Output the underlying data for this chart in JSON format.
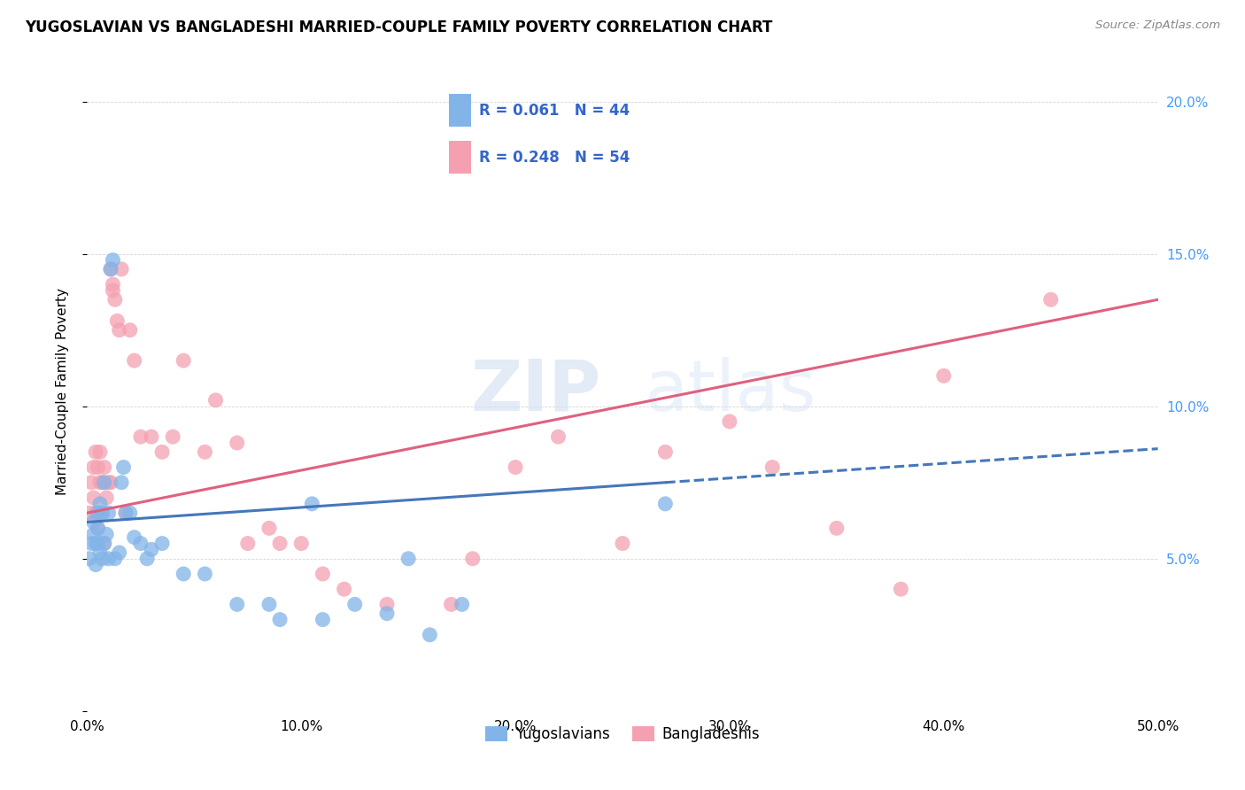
{
  "title": "YUGOSLAVIAN VS BANGLADESHI MARRIED-COUPLE FAMILY POVERTY CORRELATION CHART",
  "source": "Source: ZipAtlas.com",
  "ylabel": "Married-Couple Family Poverty",
  "xlabel_ticks": [
    "0.0%",
    "10.0%",
    "20.0%",
    "30.0%",
    "40.0%",
    "50.0%"
  ],
  "xlabel_vals": [
    0,
    10,
    20,
    30,
    40,
    50
  ],
  "ylabel_vals": [
    0,
    5,
    10,
    15,
    20
  ],
  "right_ylabel_ticks": [
    "",
    "5.0%",
    "10.0%",
    "15.0%",
    "20.0%"
  ],
  "xlim": [
    0,
    50
  ],
  "ylim": [
    0,
    21
  ],
  "legend1_label": "Yugoslavians",
  "legend2_label": "Bangladeshis",
  "R_yugo": "0.061",
  "N_yugo": "44",
  "R_bang": "0.248",
  "N_bang": "54",
  "color_yugo": "#82b4e8",
  "color_bang": "#f4a0b0",
  "color_yugo_line": "#4477bb",
  "color_bang_line": "#e06080",
  "color_right_axis": "#4499ff",
  "watermark_zip": "ZIP",
  "watermark_atlas": "atlas",
  "yugo_x": [
    0.1,
    0.2,
    0.3,
    0.3,
    0.4,
    0.4,
    0.5,
    0.5,
    0.5,
    0.6,
    0.6,
    0.7,
    0.7,
    0.8,
    0.8,
    0.9,
    1.0,
    1.0,
    1.1,
    1.2,
    1.3,
    1.5,
    1.6,
    1.7,
    1.8,
    2.0,
    2.2,
    2.5,
    2.8,
    3.0,
    3.5,
    4.5,
    5.5,
    7.0,
    8.5,
    9.0,
    10.5,
    11.0,
    12.5,
    14.0,
    15.0,
    16.0,
    17.5,
    27.0
  ],
  "yugo_y": [
    5.0,
    5.5,
    5.8,
    6.2,
    4.8,
    5.5,
    5.5,
    6.0,
    6.5,
    5.2,
    6.8,
    5.0,
    6.5,
    5.5,
    7.5,
    5.8,
    6.5,
    5.0,
    14.5,
    14.8,
    5.0,
    5.2,
    7.5,
    8.0,
    6.5,
    6.5,
    5.7,
    5.5,
    5.0,
    5.3,
    5.5,
    4.5,
    4.5,
    3.5,
    3.5,
    3.0,
    6.8,
    3.0,
    3.5,
    3.2,
    5.0,
    2.5,
    3.5,
    6.8
  ],
  "bang_x": [
    0.1,
    0.2,
    0.3,
    0.3,
    0.4,
    0.4,
    0.5,
    0.5,
    0.6,
    0.6,
    0.7,
    0.7,
    0.8,
    0.8,
    0.9,
    1.0,
    1.1,
    1.1,
    1.2,
    1.2,
    1.3,
    1.4,
    1.5,
    1.6,
    1.8,
    2.0,
    2.2,
    2.5,
    3.0,
    3.5,
    4.0,
    4.5,
    5.5,
    6.0,
    7.0,
    7.5,
    8.5,
    9.0,
    10.0,
    11.0,
    12.0,
    14.0,
    17.0,
    18.0,
    20.0,
    22.0,
    25.0,
    27.0,
    30.0,
    32.0,
    35.0,
    38.0,
    40.0,
    45.0
  ],
  "bang_y": [
    6.5,
    7.5,
    7.0,
    8.0,
    6.5,
    8.5,
    6.0,
    8.0,
    7.5,
    8.5,
    6.5,
    7.5,
    5.5,
    8.0,
    7.0,
    7.5,
    14.5,
    7.5,
    13.8,
    14.0,
    13.5,
    12.8,
    12.5,
    14.5,
    6.5,
    12.5,
    11.5,
    9.0,
    9.0,
    8.5,
    9.0,
    11.5,
    8.5,
    10.2,
    8.8,
    5.5,
    6.0,
    5.5,
    5.5,
    4.5,
    4.0,
    3.5,
    3.5,
    5.0,
    8.0,
    9.0,
    5.5,
    8.5,
    9.5,
    8.0,
    6.0,
    4.0,
    11.0,
    13.5
  ],
  "yugo_line_x0": 0,
  "yugo_line_x_solid_end": 27,
  "yugo_line_x_dash_end": 50,
  "bang_line_x0": 0,
  "bang_line_x_end": 50
}
